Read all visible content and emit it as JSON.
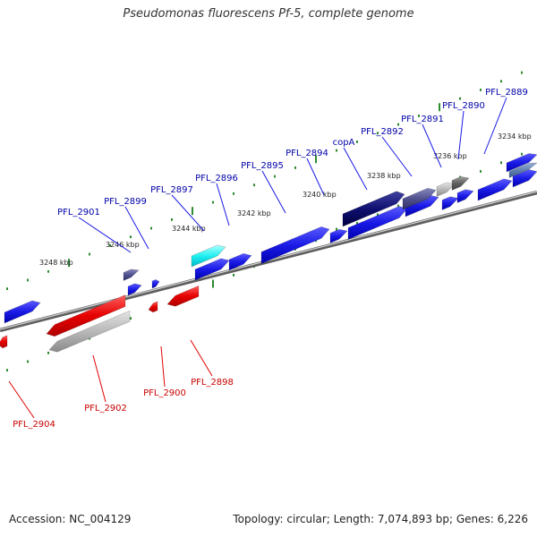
{
  "header": {
    "title": "Pseudomonas fluorescens Pf-5, complete genome"
  },
  "footer": {
    "accession": "Accession: NC_004129",
    "topology": "Topology: circular; Length: 7,074,893 bp; Genes: 6,226"
  },
  "colors": {
    "forward_gene": "#1a1ae6",
    "reverse_gene": "#e60000",
    "forward_label": "#0000a8",
    "reverse_label": "#c80000",
    "tick": "#2e8b2e",
    "backbone": "#8c8c8c"
  },
  "map": {
    "scale_labels": [
      "3248 kbp",
      "3246 kbp",
      "3244 kbp",
      "3242 kbp",
      "3240 kbp",
      "3238 kbp",
      "3236 kbp",
      "3234 kbp"
    ],
    "forward_gene_labels": [
      "PFL_2901",
      "PFL_2899",
      "PFL_2897",
      "PFL_2896",
      "PFL_2895",
      "PFL_2894",
      "copA",
      "PFL_2892",
      "PFL_2891",
      "PFL_2890",
      "PFL_2889"
    ],
    "reverse_gene_labels": [
      "PFL_2904",
      "PFL_2902",
      "PFL_2900",
      "PFL_2898"
    ]
  }
}
